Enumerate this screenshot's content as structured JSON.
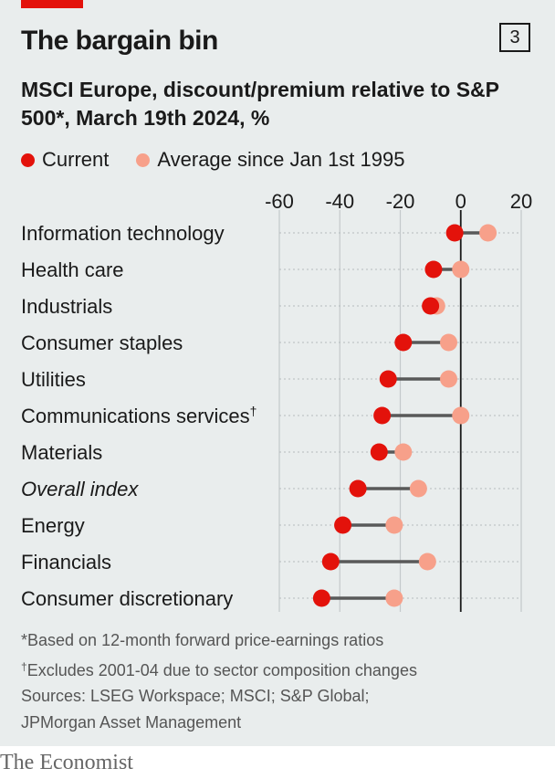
{
  "header": {
    "title": "The bargain bin",
    "chart_number": "3",
    "subtitle": "MSCI Europe, discount/premium relative to S&P 500*, March 19th 2024, %"
  },
  "legend": {
    "current": "Current",
    "average": "Average since Jan 1st 1995"
  },
  "colors": {
    "current": "#e3120b",
    "average": "#f7a08a",
    "connector": "#595959",
    "background": "#e9eded",
    "brand_red": "#e3120b"
  },
  "chart_data": {
    "type": "dumbbell",
    "series": [
      {
        "name": "Current",
        "values": [
          -2,
          -9,
          -10,
          -19,
          -24,
          -26,
          -27,
          -34,
          -39,
          -43,
          -46
        ]
      },
      {
        "name": "Average since Jan 1st 1995",
        "values": [
          9,
          0,
          -8,
          -4,
          -4,
          0,
          -19,
          -14,
          -22,
          -11,
          -22
        ]
      }
    ],
    "categories": [
      "Information technology",
      "Health care",
      "Industrials",
      "Consumer staples",
      "Utilities",
      "Communications services",
      "Materials",
      "Overall index",
      "Energy",
      "Financials",
      "Consumer discretionary"
    ],
    "category_marks": [
      "",
      "",
      "",
      "",
      "",
      "†",
      "",
      "",
      "",
      "",
      ""
    ],
    "italic_categories": [
      "Overall index"
    ],
    "xticks": [
      -60,
      -40,
      -20,
      0,
      20
    ],
    "xtick_labels": [
      "-60",
      "-40",
      "-20",
      "0",
      "20"
    ],
    "xlim": [
      -60,
      20
    ],
    "grid": true,
    "zero_line": true
  },
  "footnotes": {
    "note1": "*Based on 12-month forward price-earnings ratios",
    "note2_mark": "†",
    "note2": "Excludes 2001-04 due to sector composition changes",
    "sources1": "Sources: LSEG Workspace; MSCI; S&P Global;",
    "sources2": "JPMorgan Asset Management"
  },
  "brand": "The Economist"
}
